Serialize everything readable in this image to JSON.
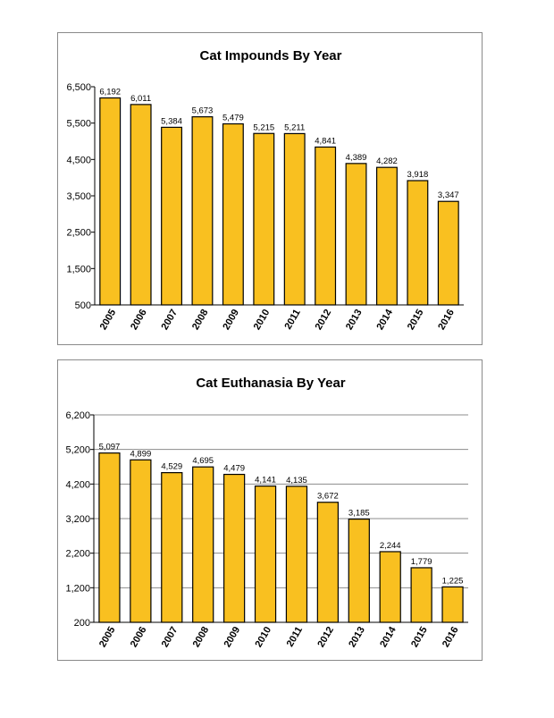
{
  "chart_data": [
    {
      "type": "bar",
      "title": "Cat Impounds By Year",
      "xlabel": "",
      "ylabel": "",
      "categories": [
        "2005",
        "2006",
        "2007",
        "2008",
        "2009",
        "2010",
        "2011",
        "2012",
        "2013",
        "2014",
        "2015",
        "2016"
      ],
      "values": [
        6192,
        6011,
        5384,
        5673,
        5479,
        5215,
        5211,
        4841,
        4389,
        4282,
        3918,
        3347
      ],
      "value_labels": [
        "6,192",
        "6,011",
        "5,384",
        "5,673",
        "5,479",
        "5,215",
        "5,211",
        "4,841",
        "4,389",
        "4,282",
        "3,918",
        "3,347"
      ],
      "ylim": [
        500,
        6500
      ],
      "yticks": [
        500,
        1500,
        2500,
        3500,
        4500,
        5500,
        6500
      ],
      "ytick_labels": [
        "500",
        "1,500",
        "2,500",
        "3,500",
        "4,500",
        "5,500",
        "6,500"
      ],
      "grid": false,
      "bar_color": "#f9c020",
      "bar_edge_color": "#000000"
    },
    {
      "type": "bar",
      "title": "Cat Euthanasia By Year",
      "xlabel": "",
      "ylabel": "",
      "categories": [
        "2005",
        "2006",
        "2007",
        "2008",
        "2009",
        "2010",
        "2011",
        "2012",
        "2013",
        "2014",
        "2015",
        "2016"
      ],
      "values": [
        5097,
        4899,
        4529,
        4695,
        4479,
        4141,
        4135,
        3672,
        3185,
        2244,
        1779,
        1225
      ],
      "value_labels": [
        "5,097",
        "4,899",
        "4,529",
        "4,695",
        "4,479",
        "4,141",
        "4,135",
        "3,672",
        "3,185",
        "2,244",
        "1,779",
        "1,225"
      ],
      "ylim": [
        200,
        6200
      ],
      "yticks": [
        200,
        1200,
        2200,
        3200,
        4200,
        5200,
        6200
      ],
      "ytick_labels": [
        "200",
        "1,200",
        "2,200",
        "3,200",
        "4,200",
        "5,200",
        "6,200"
      ],
      "grid": true,
      "bar_color": "#f9c020",
      "bar_edge_color": "#000000"
    }
  ]
}
